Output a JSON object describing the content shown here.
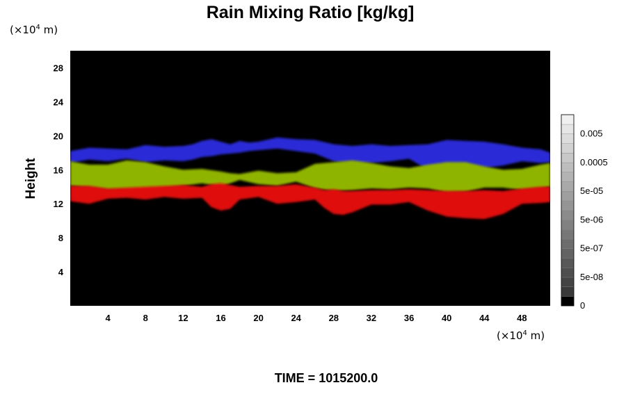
{
  "chart_data": {
    "type": "heatmap",
    "title": "Rain Mixing Ratio [kg/kg]",
    "ylabel": "Height",
    "xlabel": "",
    "x_unit": {
      "prefix": "(×10",
      "exponent": "4",
      "suffix": " m)"
    },
    "y_unit": {
      "prefix": "(×10",
      "exponent": "4",
      "suffix": " m)"
    },
    "xlim": [
      0,
      51
    ],
    "ylim": [
      0,
      30
    ],
    "x_ticks": [
      "4",
      "8",
      "12",
      "16",
      "20",
      "24",
      "28",
      "32",
      "36",
      "40",
      "44",
      "48"
    ],
    "x_tick_values": [
      4,
      8,
      12,
      16,
      20,
      24,
      28,
      32,
      36,
      40,
      44,
      48
    ],
    "y_ticks": [
      "4",
      "8",
      "12",
      "16",
      "20",
      "24",
      "28"
    ],
    "y_tick_values": [
      4,
      8,
      12,
      16,
      20,
      24,
      28
    ],
    "background_color": "#000000",
    "colorbar": {
      "levels": 20,
      "labels": [
        "0",
        "5e-08",
        "5e-07",
        "5e-06",
        "5e-05",
        "0.0005",
        "0.005"
      ],
      "label_levels": [
        0,
        3,
        6,
        9,
        12,
        15,
        18
      ]
    },
    "layers": [
      {
        "color": "#2a2ad6",
        "samples": [
          [
            0,
            16.8,
            18.2
          ],
          [
            2,
            17.2,
            18.6
          ],
          [
            4,
            17.0,
            18.5
          ],
          [
            6,
            17.3,
            18.4
          ],
          [
            8,
            16.9,
            18.9
          ],
          [
            10,
            17.1,
            18.7
          ],
          [
            12,
            17.0,
            18.8
          ],
          [
            13,
            17.2,
            19.0
          ],
          [
            14,
            17.5,
            19.4
          ],
          [
            15,
            17.6,
            19.6
          ],
          [
            16,
            17.8,
            19.3
          ],
          [
            17,
            17.9,
            19.0
          ],
          [
            18,
            18.0,
            19.4
          ],
          [
            19,
            18.2,
            19.2
          ],
          [
            20,
            18.3,
            19.3
          ],
          [
            22,
            18.5,
            19.8
          ],
          [
            24,
            18.2,
            19.6
          ],
          [
            26,
            17.9,
            19.5
          ],
          [
            28,
            17.0,
            19.0
          ],
          [
            30,
            16.6,
            18.8
          ],
          [
            32,
            16.8,
            19.0
          ],
          [
            34,
            17.0,
            18.8
          ],
          [
            36,
            17.3,
            18.9
          ],
          [
            38,
            16.0,
            19.0
          ],
          [
            40,
            15.8,
            19.5
          ],
          [
            42,
            15.9,
            19.4
          ],
          [
            44,
            16.2,
            19.3
          ],
          [
            46,
            16.5,
            19.0
          ],
          [
            48,
            17.0,
            18.6
          ],
          [
            50,
            16.8,
            18.4
          ],
          [
            51,
            16.9,
            18.0
          ]
        ]
      },
      {
        "color": "#8fb400",
        "samples": [
          [
            0,
            14.1,
            17.0
          ],
          [
            2,
            13.9,
            16.6
          ],
          [
            4,
            13.6,
            16.6
          ],
          [
            6,
            13.6,
            17.1
          ],
          [
            8,
            13.5,
            16.9
          ],
          [
            10,
            13.8,
            16.4
          ],
          [
            12,
            14.1,
            16.0
          ],
          [
            14,
            14.4,
            16.1
          ],
          [
            16,
            14.0,
            15.8
          ],
          [
            17,
            14.4,
            15.6
          ],
          [
            18,
            14.8,
            15.5
          ],
          [
            20,
            14.3,
            15.9
          ],
          [
            22,
            14.1,
            15.6
          ],
          [
            24,
            14.6,
            15.7
          ],
          [
            26,
            13.8,
            16.7
          ],
          [
            28,
            13.5,
            16.9
          ],
          [
            30,
            13.6,
            17.1
          ],
          [
            32,
            13.8,
            16.8
          ],
          [
            34,
            13.7,
            16.4
          ],
          [
            36,
            13.9,
            16.2
          ],
          [
            38,
            13.8,
            16.6
          ],
          [
            40,
            13.3,
            16.9
          ],
          [
            42,
            13.4,
            16.9
          ],
          [
            44,
            13.9,
            16.4
          ],
          [
            46,
            13.9,
            16.0
          ],
          [
            48,
            13.6,
            16.1
          ],
          [
            50,
            13.8,
            16.6
          ],
          [
            51,
            14.0,
            16.8
          ]
        ]
      },
      {
        "color": "#e01010",
        "samples": [
          [
            0,
            12.3,
            14.1
          ],
          [
            2,
            12.0,
            14.1
          ],
          [
            4,
            12.6,
            13.8
          ],
          [
            6,
            12.7,
            13.9
          ],
          [
            8,
            12.5,
            14.0
          ],
          [
            10,
            12.8,
            14.1
          ],
          [
            12,
            12.6,
            14.2
          ],
          [
            14,
            12.7,
            14.0
          ],
          [
            15,
            11.6,
            14.3
          ],
          [
            16,
            11.2,
            14.4
          ],
          [
            17,
            11.4,
            14.2
          ],
          [
            18,
            12.5,
            14.0
          ],
          [
            20,
            12.8,
            14.1
          ],
          [
            22,
            12.0,
            14.1
          ],
          [
            24,
            12.2,
            14.3
          ],
          [
            26,
            12.5,
            13.9
          ],
          [
            27,
            11.5,
            13.6
          ],
          [
            28,
            10.8,
            13.7
          ],
          [
            29,
            10.7,
            13.5
          ],
          [
            30,
            11.0,
            13.5
          ],
          [
            32,
            11.9,
            13.6
          ],
          [
            34,
            11.9,
            13.6
          ],
          [
            36,
            12.2,
            13.7
          ],
          [
            38,
            11.2,
            13.6
          ],
          [
            40,
            10.5,
            13.5
          ],
          [
            42,
            10.3,
            13.5
          ],
          [
            44,
            10.2,
            13.6
          ],
          [
            46,
            10.8,
            13.5
          ],
          [
            48,
            12.0,
            13.8
          ],
          [
            50,
            12.1,
            14.0
          ],
          [
            51,
            12.2,
            14.0
          ]
        ]
      }
    ]
  },
  "footer": {
    "time_label": "TIME = 1015200.0"
  }
}
